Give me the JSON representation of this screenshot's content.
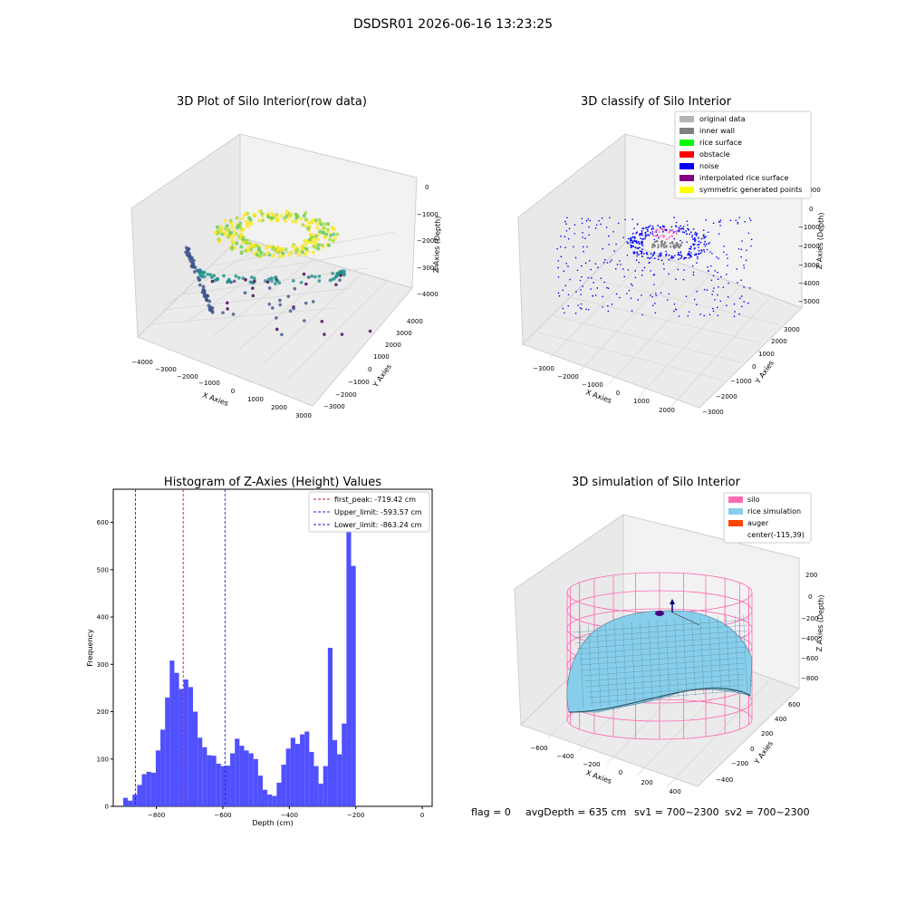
{
  "figure": {
    "suptitle": "DSDSR01 2026-06-16 13:23:25",
    "status_line": {
      "flag": "flag = 0",
      "avg_depth": "avgDepth = 635 cm",
      "sv1": "sv1 = 700~2300",
      "sv2": "sv2 = 700~2300"
    }
  },
  "colors": {
    "hist_bar": "#5050ff",
    "peak_line": "#cc2222",
    "limit_line": "#2222cc",
    "silo": "#ff69b4",
    "rice_sim": "#87ceeb",
    "auger": "#ff4500",
    "noise": "#0000ff",
    "rice_surface": "#00ff00",
    "obstacle": "#ff0000",
    "inner_wall": "#808080",
    "original": "#b3b3b3",
    "interp": "#800080",
    "symmetric": "#ffff00"
  },
  "chart_data": [
    {
      "type": "scatter",
      "title": "3D Plot of Silo Interior(row data)",
      "xlabel": "X Axies",
      "ylabel": "Y Axies",
      "zlabel": "Z Axies (Depth)",
      "x_ticks": [
        "−4000",
        "−3000",
        "−2000",
        "−1000",
        "0",
        "1000",
        "2000",
        "3000"
      ],
      "y_ticks": [
        "−3000",
        "−2000",
        "−1000",
        "0",
        "1000",
        "2000",
        "3000",
        "4000"
      ],
      "z_ticks": [
        "0",
        "−1000",
        "−2000",
        "−3000",
        "−4000"
      ],
      "xlim": [
        -4000,
        3000
      ],
      "ylim": [
        -3000,
        4000
      ],
      "zlim": [
        -4500,
        0
      ],
      "colormap": "viridis"
    },
    {
      "type": "scatter",
      "title": "3D classify of Silo Interior",
      "xlabel": "X Axies",
      "ylabel": "Y Axies",
      "zlabel": "Z Axies (Depth)",
      "x_ticks": [
        "−3000",
        "−2000",
        "−1000",
        "0",
        "1000",
        "2000"
      ],
      "y_ticks": [
        "−3000",
        "−2000",
        "−1000",
        "0",
        "1000",
        "2000",
        "3000"
      ],
      "z_ticks": [
        "1000",
        "0",
        "−1000",
        "−2000",
        "−3000",
        "−4000",
        "−5000"
      ],
      "legend": [
        "original data",
        "inner wall",
        "rice surface",
        "obstacle",
        "noise",
        "interpolated rice surface",
        "symmetric generated points"
      ],
      "legend_position": "top-right"
    },
    {
      "type": "bar",
      "title": "Histogram of Z-Axies (Height) Values",
      "xlabel": "Depth (cm)",
      "ylabel": "Frequency",
      "xlim": [
        -930,
        30
      ],
      "ylim": [
        0,
        670
      ],
      "bin_width": 14,
      "bin_start": -900,
      "values": [
        18,
        12,
        25,
        45,
        68,
        73,
        71,
        118,
        162,
        230,
        308,
        282,
        248,
        268,
        252,
        200,
        145,
        125,
        108,
        107,
        90,
        85,
        86,
        112,
        143,
        128,
        118,
        112,
        100,
        65,
        35,
        25,
        22,
        50,
        88,
        122,
        145,
        132,
        152,
        158,
        115,
        85,
        48,
        85,
        335,
        140,
        110,
        175,
        640,
        508
      ],
      "x_ticks": [
        -800,
        -600,
        -400,
        -200,
        0
      ],
      "y_ticks": [
        0,
        100,
        200,
        300,
        400,
        500,
        600
      ],
      "vlines": [
        {
          "label": "first_peak: -719.42 cm",
          "x": -719.42,
          "kind": "peak"
        },
        {
          "label": "Upper_limit: -593.57 cm",
          "x": -593.57,
          "kind": "limit"
        },
        {
          "label": "Lower_limit: -863.24 cm",
          "x": -863.24,
          "kind": "limit"
        }
      ],
      "legend_position": "top-right"
    },
    {
      "type": "area",
      "title": "3D simulation of Silo Interior",
      "xlabel": "X Axies",
      "ylabel": "Y Axies",
      "zlabel": "Z Axies (Depth)",
      "x_ticks": [
        "−600",
        "−400",
        "−200",
        "0",
        "200",
        "400"
      ],
      "y_ticks": [
        "−400",
        "−200",
        "0",
        "200",
        "400",
        "600"
      ],
      "z_ticks": [
        "200",
        "0",
        "−200",
        "−400",
        "−600",
        "−800"
      ],
      "legend": [
        "silo",
        "rice simulation",
        "auger",
        "center(-115,39)"
      ],
      "legend_position": "top-right"
    }
  ]
}
